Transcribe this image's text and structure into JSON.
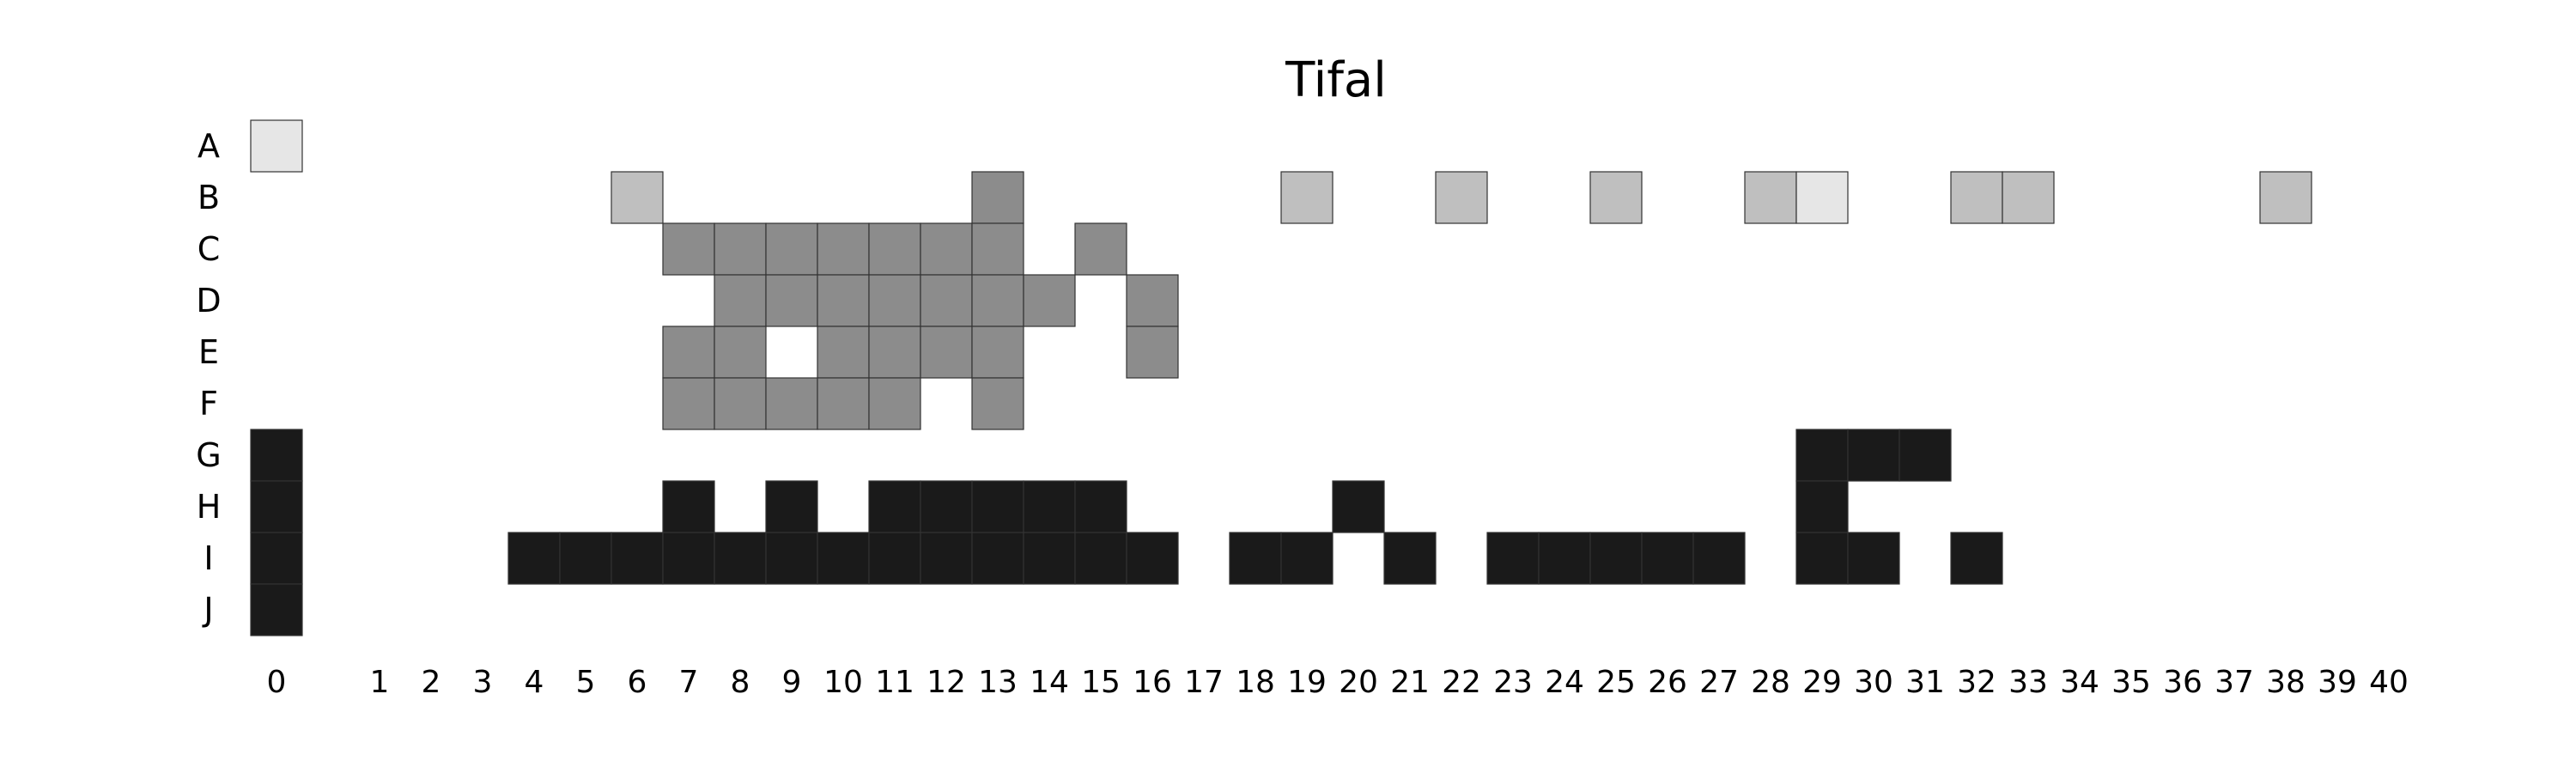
{
  "chart_data": {
    "type": "heatmap",
    "title": "Tifal",
    "xlabel": "",
    "ylabel": "",
    "grid": false,
    "rows": [
      "A",
      "B",
      "C",
      "D",
      "E",
      "F",
      "G",
      "H",
      "I",
      "J"
    ],
    "columns": [
      "0",
      "1",
      "2",
      "3",
      "4",
      "5",
      "6",
      "7",
      "8",
      "9",
      "10",
      "11",
      "12",
      "13",
      "14",
      "15",
      "16",
      "17",
      "18",
      "19",
      "20",
      "21",
      "22",
      "23",
      "24",
      "25",
      "26",
      "27",
      "28",
      "29",
      "30",
      "31",
      "32",
      "33",
      "34",
      "35",
      "36",
      "37",
      "38",
      "39",
      "40"
    ],
    "levels": {
      "1": "#e6e6e6",
      "2": "#bfbfbf",
      "3": "#8c8c8c",
      "4": "#1a1a1a"
    },
    "cells": [
      {
        "row": "A",
        "col": 0,
        "level": 1
      },
      {
        "row": "B",
        "col": 6,
        "level": 2
      },
      {
        "row": "B",
        "col": 13,
        "level": 3
      },
      {
        "row": "B",
        "col": 19,
        "level": 2
      },
      {
        "row": "B",
        "col": 22,
        "level": 2
      },
      {
        "row": "B",
        "col": 25,
        "level": 2
      },
      {
        "row": "B",
        "col": 28,
        "level": 2
      },
      {
        "row": "B",
        "col": 29,
        "level": 1
      },
      {
        "row": "B",
        "col": 32,
        "level": 2
      },
      {
        "row": "B",
        "col": 33,
        "level": 2
      },
      {
        "row": "B",
        "col": 38,
        "level": 2
      },
      {
        "row": "C",
        "col": 7,
        "level": 3
      },
      {
        "row": "C",
        "col": 8,
        "level": 3
      },
      {
        "row": "C",
        "col": 9,
        "level": 3
      },
      {
        "row": "C",
        "col": 10,
        "level": 3
      },
      {
        "row": "C",
        "col": 11,
        "level": 3
      },
      {
        "row": "C",
        "col": 12,
        "level": 3
      },
      {
        "row": "C",
        "col": 13,
        "level": 3
      },
      {
        "row": "C",
        "col": 15,
        "level": 3
      },
      {
        "row": "D",
        "col": 8,
        "level": 3
      },
      {
        "row": "D",
        "col": 9,
        "level": 3
      },
      {
        "row": "D",
        "col": 10,
        "level": 3
      },
      {
        "row": "D",
        "col": 11,
        "level": 3
      },
      {
        "row": "D",
        "col": 12,
        "level": 3
      },
      {
        "row": "D",
        "col": 13,
        "level": 3
      },
      {
        "row": "D",
        "col": 14,
        "level": 3
      },
      {
        "row": "D",
        "col": 16,
        "level": 3
      },
      {
        "row": "E",
        "col": 7,
        "level": 3
      },
      {
        "row": "E",
        "col": 8,
        "level": 3
      },
      {
        "row": "E",
        "col": 10,
        "level": 3
      },
      {
        "row": "E",
        "col": 11,
        "level": 3
      },
      {
        "row": "E",
        "col": 12,
        "level": 3
      },
      {
        "row": "E",
        "col": 13,
        "level": 3
      },
      {
        "row": "E",
        "col": 16,
        "level": 3
      },
      {
        "row": "F",
        "col": 7,
        "level": 3
      },
      {
        "row": "F",
        "col": 8,
        "level": 3
      },
      {
        "row": "F",
        "col": 9,
        "level": 3
      },
      {
        "row": "F",
        "col": 10,
        "level": 3
      },
      {
        "row": "F",
        "col": 11,
        "level": 3
      },
      {
        "row": "F",
        "col": 13,
        "level": 3
      },
      {
        "row": "G",
        "col": 0,
        "level": 4
      },
      {
        "row": "G",
        "col": 29,
        "level": 4
      },
      {
        "row": "G",
        "col": 30,
        "level": 4
      },
      {
        "row": "G",
        "col": 31,
        "level": 4
      },
      {
        "row": "H",
        "col": 0,
        "level": 4
      },
      {
        "row": "H",
        "col": 7,
        "level": 4
      },
      {
        "row": "H",
        "col": 9,
        "level": 4
      },
      {
        "row": "H",
        "col": 11,
        "level": 4
      },
      {
        "row": "H",
        "col": 12,
        "level": 4
      },
      {
        "row": "H",
        "col": 13,
        "level": 4
      },
      {
        "row": "H",
        "col": 14,
        "level": 4
      },
      {
        "row": "H",
        "col": 15,
        "level": 4
      },
      {
        "row": "H",
        "col": 20,
        "level": 4
      },
      {
        "row": "H",
        "col": 29,
        "level": 4
      },
      {
        "row": "I",
        "col": 0,
        "level": 4
      },
      {
        "row": "I",
        "col": 4,
        "level": 4
      },
      {
        "row": "I",
        "col": 5,
        "level": 4
      },
      {
        "row": "I",
        "col": 6,
        "level": 4
      },
      {
        "row": "I",
        "col": 7,
        "level": 4
      },
      {
        "row": "I",
        "col": 8,
        "level": 4
      },
      {
        "row": "I",
        "col": 9,
        "level": 4
      },
      {
        "row": "I",
        "col": 10,
        "level": 4
      },
      {
        "row": "I",
        "col": 11,
        "level": 4
      },
      {
        "row": "I",
        "col": 12,
        "level": 4
      },
      {
        "row": "I",
        "col": 13,
        "level": 4
      },
      {
        "row": "I",
        "col": 14,
        "level": 4
      },
      {
        "row": "I",
        "col": 15,
        "level": 4
      },
      {
        "row": "I",
        "col": 16,
        "level": 4
      },
      {
        "row": "I",
        "col": 18,
        "level": 4
      },
      {
        "row": "I",
        "col": 19,
        "level": 4
      },
      {
        "row": "I",
        "col": 21,
        "level": 4
      },
      {
        "row": "I",
        "col": 23,
        "level": 4
      },
      {
        "row": "I",
        "col": 24,
        "level": 4
      },
      {
        "row": "I",
        "col": 25,
        "level": 4
      },
      {
        "row": "I",
        "col": 26,
        "level": 4
      },
      {
        "row": "I",
        "col": 27,
        "level": 4
      },
      {
        "row": "I",
        "col": 29,
        "level": 4
      },
      {
        "row": "I",
        "col": 30,
        "level": 4
      },
      {
        "row": "I",
        "col": 32,
        "level": 4
      },
      {
        "row": "J",
        "col": 0,
        "level": 4
      }
    ]
  }
}
